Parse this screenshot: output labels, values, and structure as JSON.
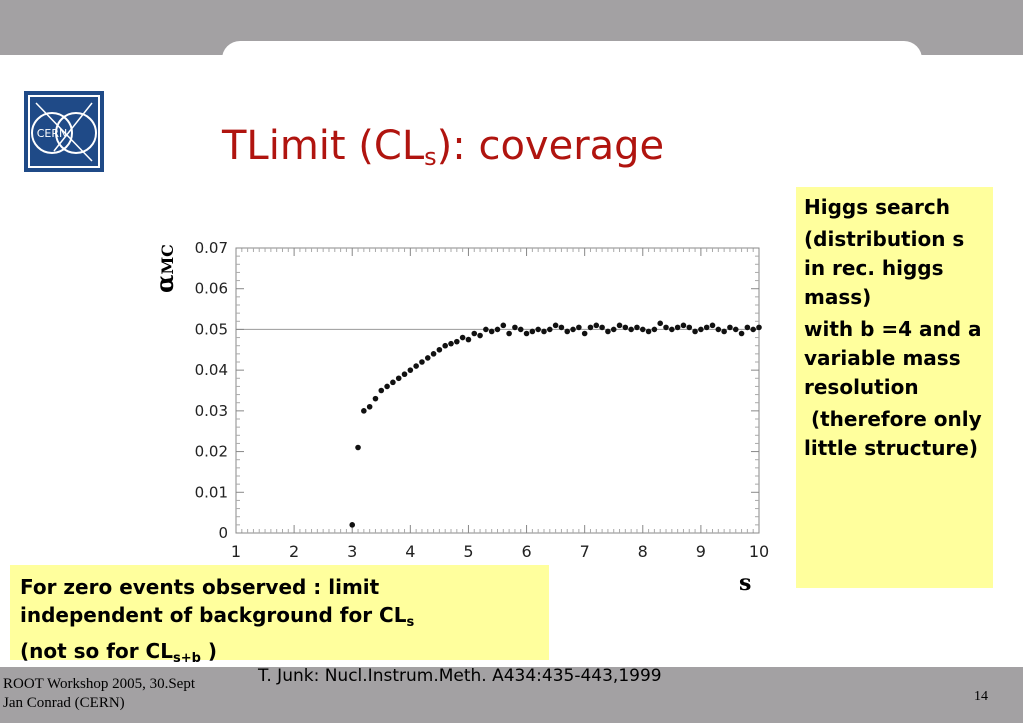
{
  "slide": {
    "title_main": "TLimit (CL",
    "title_sub": "s",
    "title_rest": "): coverage",
    "logo_text": "CERN",
    "higgs_box": [
      "Higgs search",
      "(distribution s in rec. higgs mass)",
      "with  b =4 and  a variable mass resolution",
      " (therefore only little structure)"
    ],
    "zero_box": {
      "line1": "For zero events observed : limit",
      "line2": "independent of background for CL",
      "line2_sub": "s",
      "line3": "(not so for CL",
      "line3_sub": "s+b",
      "line3_end": " )"
    },
    "reference": "T. Junk: Nucl.Instrum.Meth. A434:435-443,1999",
    "footer": {
      "line1": "ROOT Workshop 2005, 30.Sept",
      "line2": "Jan Conrad (CERN)"
    },
    "page_number": "14",
    "colors": {
      "title": "#b0140f",
      "highlight": "#ffff9d",
      "band": "#a3a1a3",
      "logo": "#1f4a87"
    }
  },
  "chart_data": {
    "type": "scatter",
    "title": "",
    "ylabel": "α",
    "ylabel_sub": "MC",
    "xlabel": "s",
    "xlim": [
      1,
      10
    ],
    "ylim": [
      0,
      0.07
    ],
    "xticks": [
      "1",
      "2",
      "3",
      "4",
      "5",
      "6",
      "7",
      "8",
      "9",
      "10"
    ],
    "yticks": [
      "0",
      "0.01",
      "0.02",
      "0.03",
      "0.04",
      "0.05",
      "0.06",
      "0.07"
    ],
    "reference_line": 0.05,
    "grid": false,
    "series": [
      {
        "x": [
          3.0,
          3.1,
          3.2,
          3.3,
          3.4,
          3.5,
          3.6,
          3.7,
          3.8,
          3.9,
          4.0,
          4.1,
          4.2,
          4.3,
          4.4,
          4.5,
          4.6,
          4.7,
          4.8,
          4.9,
          5.0,
          5.1,
          5.2,
          5.3,
          5.4,
          5.5,
          5.6,
          5.7,
          5.8,
          5.9,
          6.0,
          6.1,
          6.2,
          6.3,
          6.4,
          6.5,
          6.6,
          6.7,
          6.8,
          6.9,
          7.0,
          7.1,
          7.2,
          7.3,
          7.4,
          7.5,
          7.6,
          7.7,
          7.8,
          7.9,
          8.0,
          8.1,
          8.2,
          8.3,
          8.4,
          8.5,
          8.6,
          8.7,
          8.8,
          8.9,
          9.0,
          9.1,
          9.2,
          9.3,
          9.4,
          9.5,
          9.6,
          9.7,
          9.8,
          9.9,
          10.0
        ],
        "y": [
          0.002,
          0.021,
          0.03,
          0.031,
          0.033,
          0.035,
          0.036,
          0.037,
          0.038,
          0.039,
          0.04,
          0.041,
          0.042,
          0.043,
          0.044,
          0.045,
          0.046,
          0.0465,
          0.047,
          0.048,
          0.0475,
          0.049,
          0.0485,
          0.05,
          0.0495,
          0.05,
          0.051,
          0.049,
          0.0505,
          0.05,
          0.049,
          0.0495,
          0.05,
          0.0495,
          0.05,
          0.051,
          0.0505,
          0.0495,
          0.05,
          0.0505,
          0.049,
          0.0505,
          0.051,
          0.0505,
          0.0495,
          0.05,
          0.051,
          0.0505,
          0.05,
          0.0505,
          0.05,
          0.0495,
          0.05,
          0.0515,
          0.0505,
          0.05,
          0.0505,
          0.051,
          0.0505,
          0.0495,
          0.05,
          0.0505,
          0.051,
          0.05,
          0.0495,
          0.0505,
          0.05,
          0.049,
          0.0505,
          0.05,
          0.0505
        ]
      }
    ]
  }
}
